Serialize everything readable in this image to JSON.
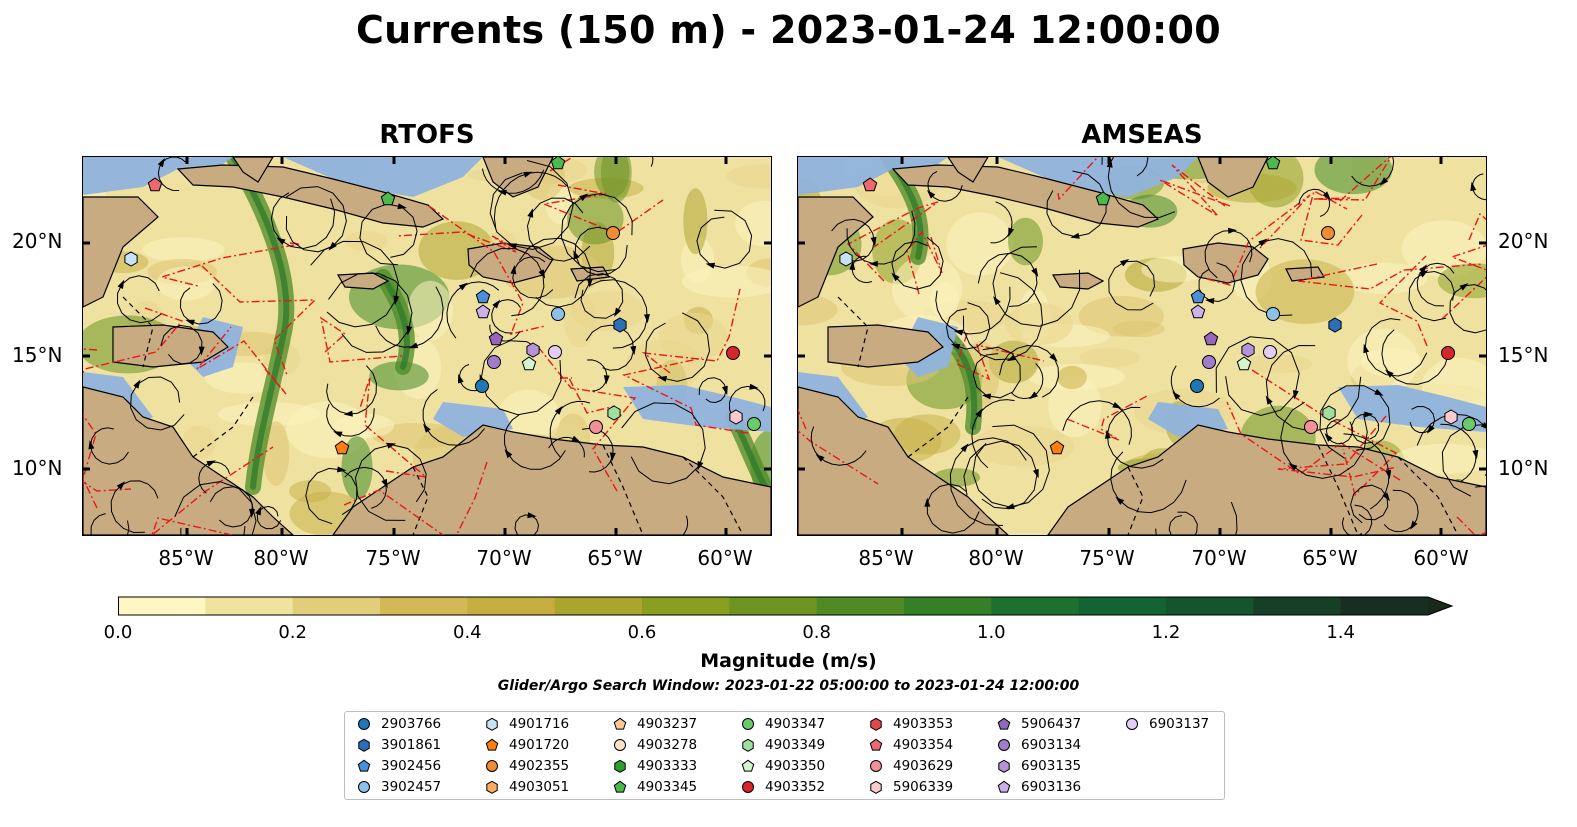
{
  "title": "Currents (150 m) - 2023-01-24 12:00:00",
  "panels": [
    {
      "title": "RTOFS"
    },
    {
      "title": "AMSEAS"
    }
  ],
  "lon_ticks": [
    "85°W",
    "80°W",
    "75°W",
    "70°W",
    "65°W",
    "60°W"
  ],
  "lat_ticks": [
    "20°N",
    "15°N",
    "10°N"
  ],
  "colorbar": {
    "label": "Magnitude (m/s)",
    "ticks": [
      "0.0",
      "0.2",
      "0.4",
      "0.6",
      "0.8",
      "1.0",
      "1.2",
      "1.4"
    ],
    "range": [
      0,
      1.5
    ],
    "extend": "max",
    "colors": [
      "#fdf7c2",
      "#f0e3a0",
      "#e2cd7a",
      "#d3b955",
      "#c7ad3f",
      "#aaa52d",
      "#8a9e1f",
      "#6d9420",
      "#4f8a24",
      "#338026",
      "#1e7030",
      "#146332",
      "#14552d",
      "#163f27",
      "#172e22",
      "#1a2a1a"
    ]
  },
  "search_window": "Glider/Argo Search Window: 2023-01-22 05:00:00 to 2023-01-24 12:00:00",
  "legend": [
    {
      "id": "2903766",
      "color": "#1f77b4",
      "marker": "circle"
    },
    {
      "id": "3901861",
      "color": "#2b6fb8",
      "marker": "hexagon"
    },
    {
      "id": "3902456",
      "color": "#4a90d9",
      "marker": "pentagon"
    },
    {
      "id": "3902457",
      "color": "#8ec0ec",
      "marker": "circle"
    },
    {
      "id": "4901716",
      "color": "#c6e3f7",
      "marker": "hexagon"
    },
    {
      "id": "4901720",
      "color": "#ff7f0e",
      "marker": "pentagon"
    },
    {
      "id": "4902355",
      "color": "#f08c32",
      "marker": "circle"
    },
    {
      "id": "4903051",
      "color": "#ffab5e",
      "marker": "hexagon"
    },
    {
      "id": "4903237",
      "color": "#ffc793",
      "marker": "pentagon"
    },
    {
      "id": "4903278",
      "color": "#ffe0c4",
      "marker": "circle"
    },
    {
      "id": "4903333",
      "color": "#2ca02c",
      "marker": "hexagon"
    },
    {
      "id": "4903345",
      "color": "#4cb94c",
      "marker": "pentagon"
    },
    {
      "id": "4903347",
      "color": "#6acb6a",
      "marker": "circle"
    },
    {
      "id": "4903349",
      "color": "#9fe09f",
      "marker": "hexagon"
    },
    {
      "id": "4903350",
      "color": "#d3f5d0",
      "marker": "pentagon"
    },
    {
      "id": "4903352",
      "color": "#d62728",
      "marker": "circle"
    },
    {
      "id": "4903353",
      "color": "#e0484a",
      "marker": "hexagon"
    },
    {
      "id": "4903354",
      "color": "#ea6a6f",
      "marker": "pentagon"
    },
    {
      "id": "4903629",
      "color": "#f29197",
      "marker": "circle"
    },
    {
      "id": "5906339",
      "color": "#fbcacd",
      "marker": "hexagon"
    },
    {
      "id": "5906437",
      "color": "#9467bd",
      "marker": "pentagon"
    },
    {
      "id": "6903134",
      "color": "#a27ccc",
      "marker": "circle"
    },
    {
      "id": "6903135",
      "color": "#b593d8",
      "marker": "hexagon"
    },
    {
      "id": "6903136",
      "color": "#cdb1ea",
      "marker": "pentagon"
    },
    {
      "id": "6903137",
      "color": "#e3cdf7",
      "marker": "circle"
    }
  ],
  "colors": {
    "land": "#c9ab81",
    "water_shallow": "#8fb3dd",
    "coast_line": "#000000",
    "eez_line": "#e8191a"
  }
}
